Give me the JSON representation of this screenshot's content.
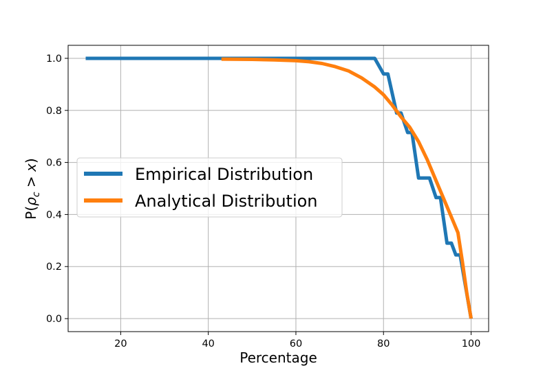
{
  "chart_data": {
    "type": "line",
    "xlabel": "Percentage",
    "ylabel": "P(ρ_c > x)",
    "xlim": [
      8,
      104
    ],
    "ylim": [
      -0.05,
      1.05
    ],
    "x_ticks": [
      20,
      40,
      60,
      80,
      100
    ],
    "y_ticks": [
      0.0,
      0.2,
      0.4,
      0.6,
      0.8,
      1.0
    ],
    "x_tick_labels": [
      "20",
      "40",
      "60",
      "80",
      "100"
    ],
    "y_tick_labels": [
      "0.0",
      "0.2",
      "0.4",
      "0.6",
      "0.8",
      "1.0"
    ],
    "grid": true,
    "legend_position": "center-left",
    "series": [
      {
        "name": "Empirical Distribution",
        "color": "#1f77b4",
        "points": [
          [
            12,
            1.0
          ],
          [
            78,
            1.0
          ],
          [
            80,
            0.94
          ],
          [
            81,
            0.94
          ],
          [
            83,
            0.79
          ],
          [
            84,
            0.79
          ],
          [
            85.5,
            0.715
          ],
          [
            86.5,
            0.715
          ],
          [
            88,
            0.54
          ],
          [
            90.5,
            0.54
          ],
          [
            92,
            0.465
          ],
          [
            93,
            0.465
          ],
          [
            94.5,
            0.29
          ],
          [
            95.5,
            0.29
          ],
          [
            96.5,
            0.245
          ],
          [
            97.5,
            0.245
          ],
          [
            100,
            0.0
          ]
        ]
      },
      {
        "name": "Analytical Distribution",
        "color": "#ff7f0e",
        "points": [
          [
            43,
            0.997
          ],
          [
            50,
            0.996
          ],
          [
            55,
            0.994
          ],
          [
            60,
            0.991
          ],
          [
            63,
            0.987
          ],
          [
            66,
            0.98
          ],
          [
            69,
            0.968
          ],
          [
            72,
            0.952
          ],
          [
            75,
            0.925
          ],
          [
            78,
            0.89
          ],
          [
            80,
            0.86
          ],
          [
            82,
            0.82
          ],
          [
            84,
            0.775
          ],
          [
            86,
            0.735
          ],
          [
            88,
            0.68
          ],
          [
            90,
            0.61
          ],
          [
            92,
            0.53
          ],
          [
            94,
            0.45
          ],
          [
            96,
            0.37
          ],
          [
            97,
            0.33
          ],
          [
            98,
            0.22
          ],
          [
            99,
            0.1
          ],
          [
            100,
            0.0
          ]
        ]
      }
    ]
  }
}
